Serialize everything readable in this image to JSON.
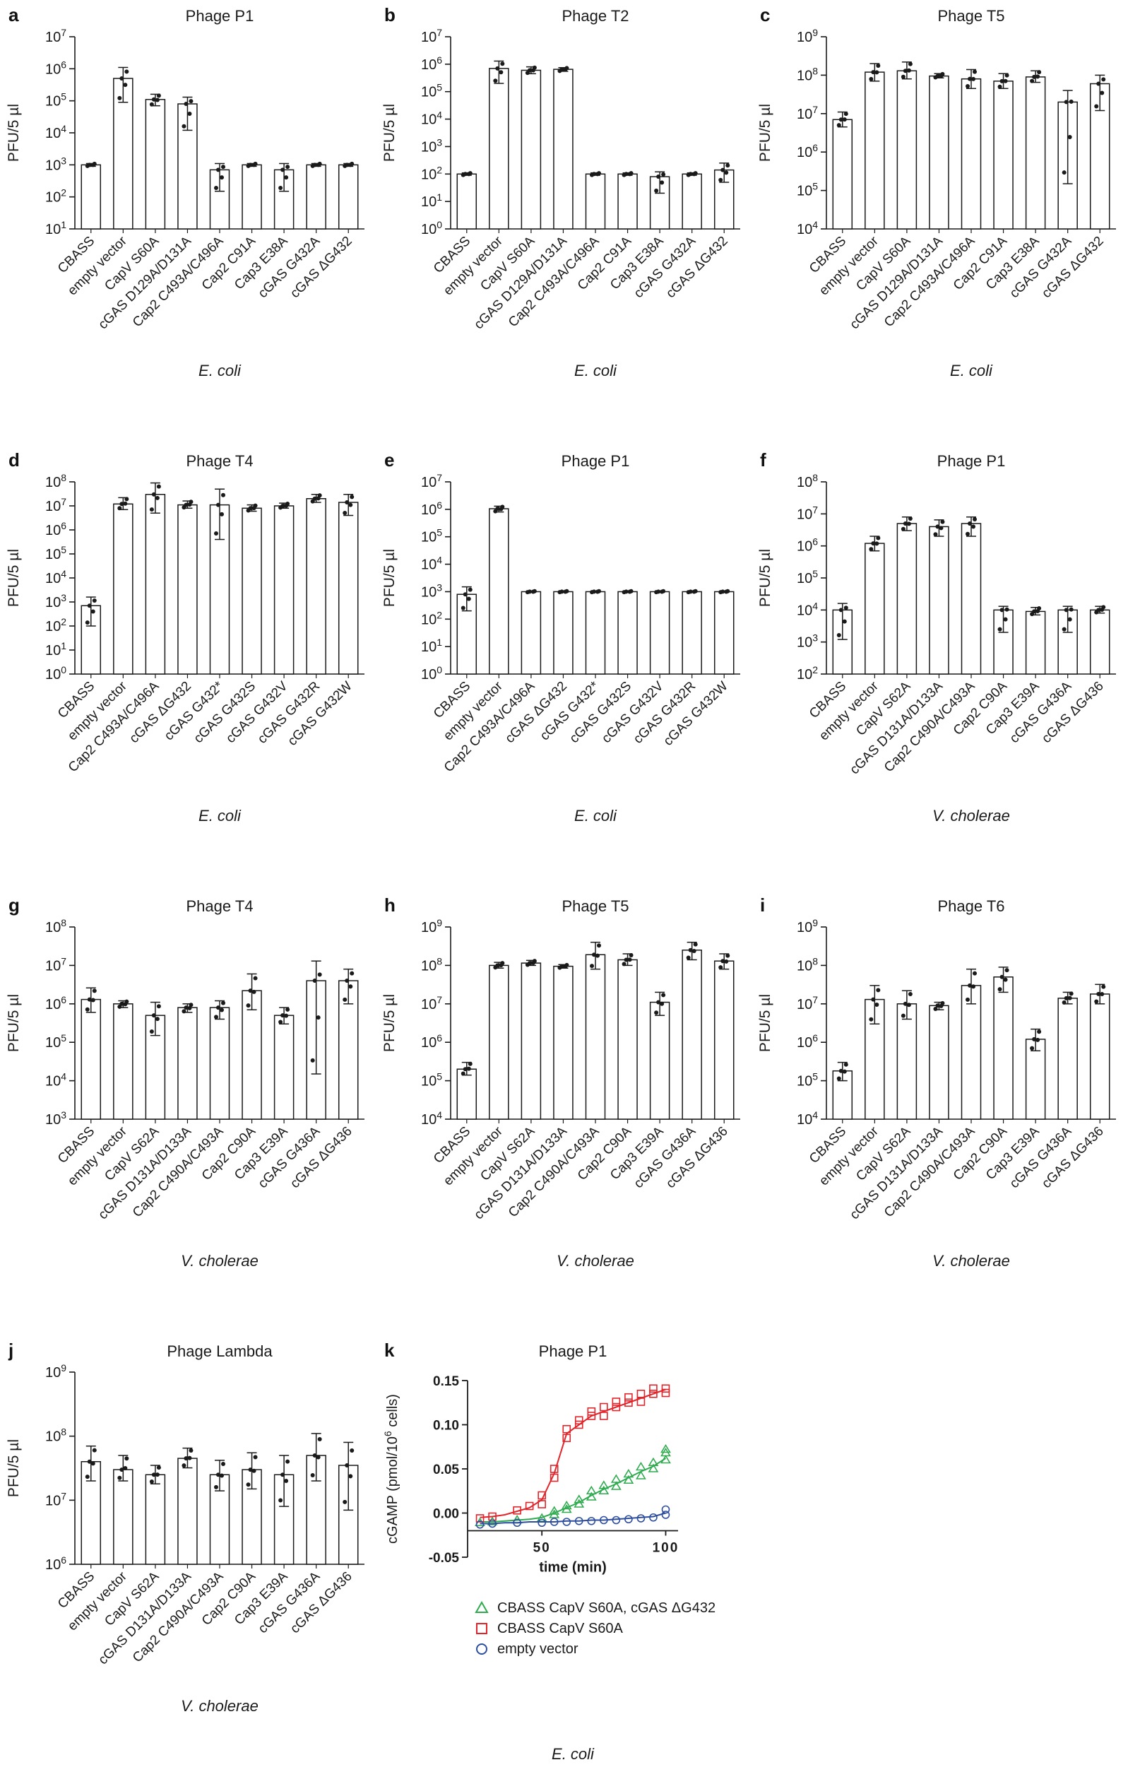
{
  "chart_data": [
    {
      "id": "a",
      "type": "bar",
      "title": "Phage P1",
      "ylabel": "PFU/5 µl",
      "species": "E. coli",
      "ymin_exp": 1,
      "ymax_exp": 7,
      "categories": [
        "CBASS",
        "empty vector",
        "CapV S60A",
        "cGAS D129A/D131A",
        "Cap2 C493A/C496A",
        "Cap2 C91A",
        "Cap3 E38A",
        "cGAS G432A",
        "cGAS ΔG432"
      ],
      "values": [
        1000,
        500000,
        110000,
        80000,
        700,
        1000,
        700,
        1000,
        1000
      ],
      "err_lo": [
        900,
        90000,
        70000,
        12000,
        150,
        900,
        150,
        900,
        900
      ],
      "err_hi": [
        1100,
        1100000,
        160000,
        130000,
        1100,
        1100,
        1100,
        1100,
        1100
      ]
    },
    {
      "id": "b",
      "type": "bar",
      "title": "Phage T2",
      "ylabel": "PFU/5 µl",
      "species": "E. coli",
      "ymin_exp": 0,
      "ymax_exp": 7,
      "categories": [
        "CBASS",
        "empty vector",
        "CapV S60A",
        "cGAS D129A/D131A",
        "Cap2 C493A/C496A",
        "Cap2 C91A",
        "Cap3 E38A",
        "cGAS G432A",
        "cGAS ΔG432"
      ],
      "values": [
        100,
        700000,
        600000,
        650000,
        100,
        100,
        80,
        100,
        140
      ],
      "err_lo": [
        90,
        200000,
        450000,
        550000,
        90,
        90,
        20,
        90,
        50
      ],
      "err_hi": [
        110,
        1300000,
        800000,
        750000,
        110,
        110,
        120,
        110,
        250
      ]
    },
    {
      "id": "c",
      "type": "bar",
      "title": "Phage T5",
      "ylabel": "PFU/5 µl",
      "species": "E. coli",
      "ymin_exp": 4,
      "ymax_exp": 9,
      "categories": [
        "CBASS",
        "empty vector",
        "CapV S60A",
        "cGAS D129A/D131A",
        "Cap2 C493A/C496A",
        "Cap2 C91A",
        "Cap3 E38A",
        "cGAS G432A",
        "cGAS ΔG432"
      ],
      "values": [
        7000000,
        120000000,
        130000000,
        95000000,
        80000000,
        70000000,
        90000000,
        20000000,
        60000000
      ],
      "err_lo": [
        4500000,
        70000000,
        80000000,
        85000000,
        45000000,
        45000000,
        65000000,
        150000,
        12000000
      ],
      "err_hi": [
        11000000,
        200000000,
        220000000,
        110000000,
        140000000,
        110000000,
        130000000,
        40000000,
        100000000
      ]
    },
    {
      "id": "d",
      "type": "bar",
      "title": "Phage T4",
      "ylabel": "PFU/5 µl",
      "species": "E. coli",
      "ymin_exp": 0,
      "ymax_exp": 8,
      "categories": [
        "CBASS",
        "empty vector",
        "Cap2 C493A/C496A",
        "cGAS ΔG432",
        "cGAS G432*",
        "cGAS G432S",
        "cGAS G432V",
        "cGAS G432R",
        "cGAS G432W"
      ],
      "values": [
        700,
        12000000,
        30000000,
        11000000,
        11000000,
        8000000,
        10000000,
        20000000,
        14000000
      ],
      "err_lo": [
        100,
        7000000,
        5000000,
        8000000,
        400000,
        6000000,
        8000000,
        14000000,
        4000000
      ],
      "err_hi": [
        1600,
        22000000,
        90000000,
        16000000,
        50000000,
        11000000,
        13000000,
        30000000,
        30000000
      ]
    },
    {
      "id": "e",
      "type": "bar",
      "title": "Phage P1",
      "ylabel": "PFU/5 µl",
      "species": "E. coli",
      "ymin_exp": 0,
      "ymax_exp": 7,
      "categories": [
        "CBASS",
        "empty vector",
        "Cap2 C493A/C496A",
        "cGAS ΔG432",
        "cGAS G432*",
        "cGAS G432S",
        "cGAS G432V",
        "cGAS G432R",
        "cGAS G432W"
      ],
      "values": [
        800,
        1050000,
        1000,
        1000,
        1000,
        1000,
        1000,
        1000,
        1000
      ],
      "err_lo": [
        200,
        800000,
        950,
        950,
        950,
        950,
        950,
        950,
        950
      ],
      "err_hi": [
        1500,
        1300000,
        1050,
        1050,
        1050,
        1050,
        1050,
        1050,
        1050
      ]
    },
    {
      "id": "f",
      "type": "bar",
      "title": "Phage P1",
      "ylabel": "PFU/5 µl",
      "species": "V. cholerae",
      "ymin_exp": 2,
      "ymax_exp": 8,
      "categories": [
        "CBASS",
        "empty vector",
        "CapV S62A",
        "cGAS D131A/D133A",
        "Cap2 C490A/C493A",
        "Cap2 C90A",
        "Cap3 E39A",
        "cGAS G436A",
        "cGAS ΔG436"
      ],
      "values": [
        10000,
        1200000,
        5000000,
        4000000,
        5000000,
        10000,
        9000,
        10000,
        10000
      ],
      "err_lo": [
        1200,
        700000,
        3000000,
        2000000,
        2000000,
        2000,
        7000,
        2000,
        8000
      ],
      "err_hi": [
        16000,
        2000000,
        8000000,
        6500000,
        8000000,
        13000,
        12000,
        13000,
        13000
      ]
    },
    {
      "id": "g",
      "type": "bar",
      "title": "Phage T4",
      "ylabel": "PFU/5 µl",
      "species": "V. cholerae",
      "ymin_exp": 3,
      "ymax_exp": 8,
      "categories": [
        "CBASS",
        "empty vector",
        "CapV S62A",
        "cGAS D131A/D133A",
        "Cap2 C490A/C493A",
        "Cap2 C90A",
        "Cap3 E39A",
        "cGAS G436A",
        "cGAS ΔG436"
      ],
      "values": [
        1300000,
        1000000,
        500000,
        800000,
        800000,
        2200000,
        500000,
        4000000,
        4000000
      ],
      "err_lo": [
        600000,
        800000,
        150000,
        600000,
        400000,
        700000,
        300000,
        15000,
        1000000
      ],
      "err_hi": [
        2600000,
        1200000,
        1100000,
        1000000,
        1200000,
        6000000,
        800000,
        13000000,
        8000000
      ]
    },
    {
      "id": "h",
      "type": "bar",
      "title": "Phage T5",
      "ylabel": "PFU/5 µl",
      "species": "V. cholerae",
      "ymin_exp": 4,
      "ymax_exp": 9,
      "categories": [
        "CBASS",
        "empty vector",
        "CapV S62A",
        "cGAS D131A/D133A",
        "Cap2 C490A/C493A",
        "Cap2 C90A",
        "Cap3 E39A",
        "cGAS G436A",
        "cGAS ΔG436"
      ],
      "values": [
        200000,
        100000000,
        115000000,
        95000000,
        190000000,
        140000000,
        11000000,
        250000000,
        130000000
      ],
      "err_lo": [
        140000,
        85000000,
        100000000,
        85000000,
        80000000,
        100000000,
        5000000,
        140000000,
        80000000
      ],
      "err_hi": [
        300000,
        120000000,
        135000000,
        105000000,
        400000000,
        200000000,
        20000000,
        400000000,
        200000000
      ]
    },
    {
      "id": "i",
      "type": "bar",
      "title": "Phage T6",
      "ylabel": "PFU/5 µl",
      "species": "V. cholerae",
      "ymin_exp": 4,
      "ymax_exp": 9,
      "categories": [
        "CBASS",
        "empty vector",
        "CapV S62A",
        "cGAS D131A/D133A",
        "Cap2 C490A/C493A",
        "Cap2 C90A",
        "Cap3 E39A",
        "cGAS G436A",
        "cGAS ΔG436"
      ],
      "values": [
        180000,
        13000000,
        10000000,
        9000000,
        30000000,
        50000000,
        1200000,
        14000000,
        18000000
      ],
      "err_lo": [
        100000,
        3000000,
        4000000,
        7000000,
        10000000,
        20000000,
        600000,
        10000000,
        10000000
      ],
      "err_hi": [
        300000,
        30000000,
        22000000,
        11000000,
        80000000,
        90000000,
        2200000,
        20000000,
        32000000
      ]
    },
    {
      "id": "j",
      "type": "bar",
      "title": "Phage Lambda",
      "ylabel": "PFU/5 µl",
      "species": "V. cholerae",
      "ymin_exp": 6,
      "ymax_exp": 9,
      "categories": [
        "CBASS",
        "empty vector",
        "CapV S62A",
        "cGAS D131A/D133A",
        "Cap2 C490A/C493A",
        "Cap2 C90A",
        "Cap3 E39A",
        "cGAS G436A",
        "cGAS ΔG436"
      ],
      "values": [
        40000000,
        30000000,
        25000000,
        45000000,
        25000000,
        30000000,
        25000000,
        50000000,
        35000000
      ],
      "err_lo": [
        20000000,
        20000000,
        18000000,
        32000000,
        14000000,
        15000000,
        8000000,
        20000000,
        7000000
      ],
      "err_hi": [
        70000000,
        50000000,
        35000000,
        65000000,
        42000000,
        55000000,
        50000000,
        110000000,
        80000000
      ]
    },
    {
      "id": "k",
      "type": "line",
      "title": "Phage P1",
      "ylabel": {
        "pre": "cGAMP (pmol/10",
        "sup": "6",
        "post": " cells)"
      },
      "xlabel": "time (min)",
      "species": "E. coli",
      "ylim": [
        -0.05,
        0.15
      ],
      "yticks": [
        -0.05,
        0,
        0.05,
        0.1,
        0.15
      ],
      "xlim": [
        20,
        105
      ],
      "xticks": [
        50,
        100
      ],
      "xaxis_y": -0.02,
      "series": [
        {
          "name": "CBASS CapV S60A, cGAS ΔG432",
          "color": "#2fab4f",
          "marker": "triangle",
          "line": {
            "x": [
              25,
              30,
              35,
              40,
              45,
              50,
              55,
              60,
              65,
              70,
              75,
              80,
              85,
              90,
              95,
              100
            ],
            "y": [
              -0.01,
              -0.01,
              -0.009,
              -0.008,
              -0.007,
              -0.005,
              0.0,
              0.006,
              0.012,
              0.02,
              0.027,
              0.033,
              0.04,
              0.047,
              0.053,
              0.062
            ]
          },
          "points": [
            [
              25,
              -0.011
            ],
            [
              30,
              -0.01
            ],
            [
              40,
              -0.008
            ],
            [
              50,
              -0.006
            ],
            [
              55,
              -0.002
            ],
            [
              55,
              0.002
            ],
            [
              60,
              0.004
            ],
            [
              60,
              0.008
            ],
            [
              65,
              0.01
            ],
            [
              65,
              0.015
            ],
            [
              70,
              0.018
            ],
            [
              70,
              0.025
            ],
            [
              75,
              0.025
            ],
            [
              75,
              0.031
            ],
            [
              80,
              0.03
            ],
            [
              80,
              0.038
            ],
            [
              85,
              0.037
            ],
            [
              85,
              0.044
            ],
            [
              90,
              0.042
            ],
            [
              90,
              0.052
            ],
            [
              95,
              0.05
            ],
            [
              95,
              0.057
            ],
            [
              100,
              0.06
            ],
            [
              100,
              0.068
            ],
            [
              100,
              0.072
            ]
          ]
        },
        {
          "name": "CBASS CapV S60A",
          "color": "#e2242b",
          "marker": "square",
          "line": {
            "x": [
              25,
              30,
              35,
              40,
              45,
              50,
              55,
              60,
              65,
              70,
              75,
              80,
              85,
              90,
              95,
              100
            ],
            "y": [
              -0.005,
              -0.004,
              -0.002,
              0.002,
              0.006,
              0.015,
              0.045,
              0.09,
              0.1,
              0.11,
              0.115,
              0.12,
              0.125,
              0.13,
              0.135,
              0.14
            ]
          },
          "points": [
            [
              25,
              -0.006
            ],
            [
              30,
              -0.004
            ],
            [
              40,
              0.003
            ],
            [
              45,
              0.008
            ],
            [
              50,
              0.01
            ],
            [
              50,
              0.02
            ],
            [
              55,
              0.04
            ],
            [
              55,
              0.05
            ],
            [
              60,
              0.085
            ],
            [
              60,
              0.095
            ],
            [
              65,
              0.1
            ],
            [
              65,
              0.105
            ],
            [
              70,
              0.11
            ],
            [
              70,
              0.115
            ],
            [
              75,
              0.11
            ],
            [
              75,
              0.12
            ],
            [
              80,
              0.12
            ],
            [
              80,
              0.126
            ],
            [
              85,
              0.125
            ],
            [
              85,
              0.131
            ],
            [
              90,
              0.126
            ],
            [
              90,
              0.135
            ],
            [
              95,
              0.135
            ],
            [
              95,
              0.141
            ],
            [
              100,
              0.136
            ],
            [
              100,
              0.141
            ]
          ]
        },
        {
          "name": "empty vector",
          "color": "#2d4d9e",
          "marker": "circle",
          "line": {
            "x": [
              25,
              30,
              35,
              40,
              45,
              50,
              55,
              60,
              65,
              70,
              75,
              80,
              85,
              90,
              95,
              100
            ],
            "y": [
              -0.012,
              -0.012,
              -0.011,
              -0.011,
              -0.01,
              -0.01,
              -0.01,
              -0.009,
              -0.009,
              -0.008,
              -0.008,
              -0.007,
              -0.006,
              -0.005,
              -0.004,
              0.0
            ]
          },
          "points": [
            [
              25,
              -0.013
            ],
            [
              30,
              -0.012
            ],
            [
              40,
              -0.011
            ],
            [
              50,
              -0.011
            ],
            [
              55,
              -0.01
            ],
            [
              60,
              -0.01
            ],
            [
              65,
              -0.009
            ],
            [
              70,
              -0.009
            ],
            [
              75,
              -0.008
            ],
            [
              80,
              -0.008
            ],
            [
              85,
              -0.007
            ],
            [
              90,
              -0.006
            ],
            [
              95,
              -0.005
            ],
            [
              100,
              -0.002
            ],
            [
              100,
              0.004
            ]
          ]
        }
      ]
    }
  ],
  "colors": {
    "axis": "#1a1a1a",
    "bar_fill": "#ffffff",
    "green": "#2fab4f",
    "red": "#e2242b",
    "blue": "#2d4d9e"
  }
}
